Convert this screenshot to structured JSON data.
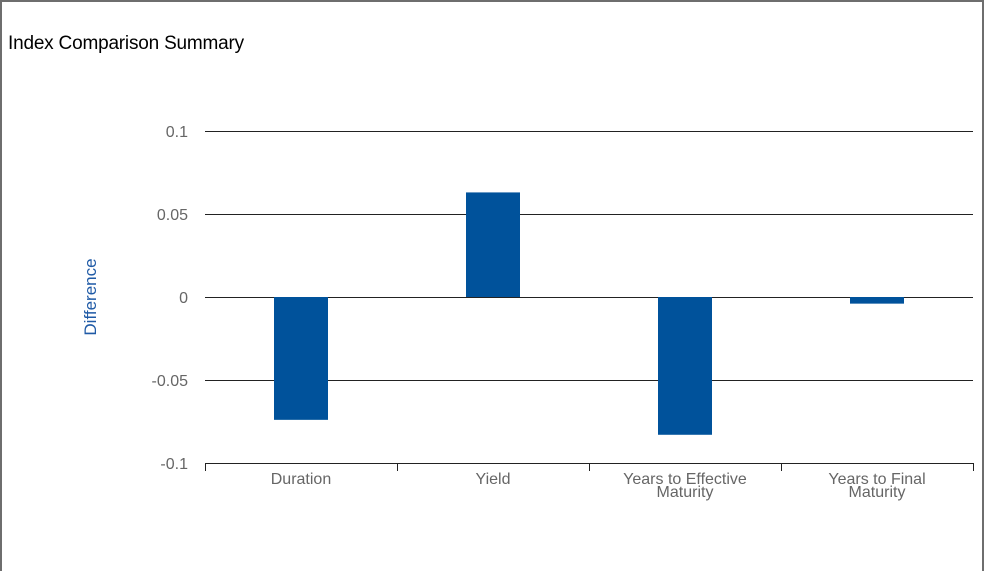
{
  "header": {
    "title": "Index Comparison Summary"
  },
  "colors": {
    "bar": "#00529b",
    "axis_title": "#1f5aa6",
    "grid": "#222222",
    "text": "#666666"
  },
  "chart_data": {
    "type": "bar",
    "title": "Index Comparison Summary",
    "ylabel": "Difference",
    "xlabel": "",
    "categories": [
      [
        "Duration"
      ],
      [
        "Yield"
      ],
      [
        "Years to Effective",
        "Maturity"
      ],
      [
        "Years to Final",
        "Maturity"
      ]
    ],
    "values": [
      -0.074,
      0.063,
      -0.083,
      -0.004
    ],
    "ylim": [
      -0.1,
      0.1
    ],
    "yticks": [
      0.1,
      0.05,
      0,
      -0.05,
      -0.1
    ],
    "ytick_labels": [
      "0.1",
      "0.05",
      "0",
      "-0.05",
      "-0.1"
    ],
    "grid": true,
    "legend": "none"
  }
}
